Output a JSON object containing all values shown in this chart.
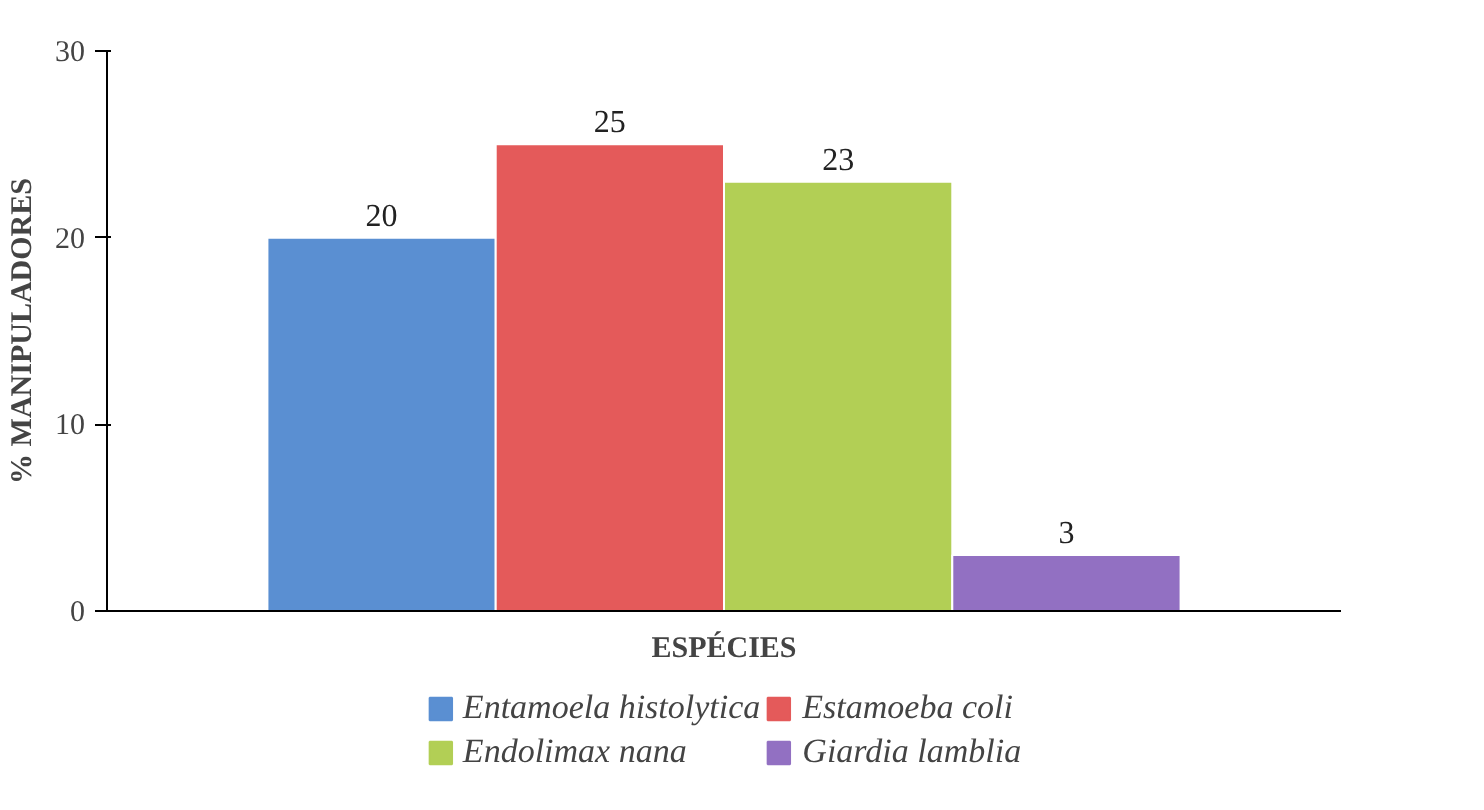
{
  "chart_data": {
    "type": "bar",
    "xlabel": "ESPÉCIES",
    "ylabel": "% MANIPULADORES",
    "categories": [
      null
    ],
    "series": [
      {
        "name": "Entamoela histolytica",
        "color": "#5a8fd2",
        "values": [
          20
        ]
      },
      {
        "name": "Estamoeba coli",
        "color": "#e45a5a",
        "values": [
          25
        ]
      },
      {
        "name": "Endolimax nana",
        "color": "#b2cf55",
        "values": [
          23
        ]
      },
      {
        "name": "Giardia lamblia",
        "color": "#9270c2",
        "values": [
          3
        ]
      }
    ],
    "ylim": [
      0,
      30
    ],
    "yticks": [
      0,
      10,
      20,
      30
    ],
    "data_labels": true,
    "legend": "bottom",
    "grid": false
  }
}
